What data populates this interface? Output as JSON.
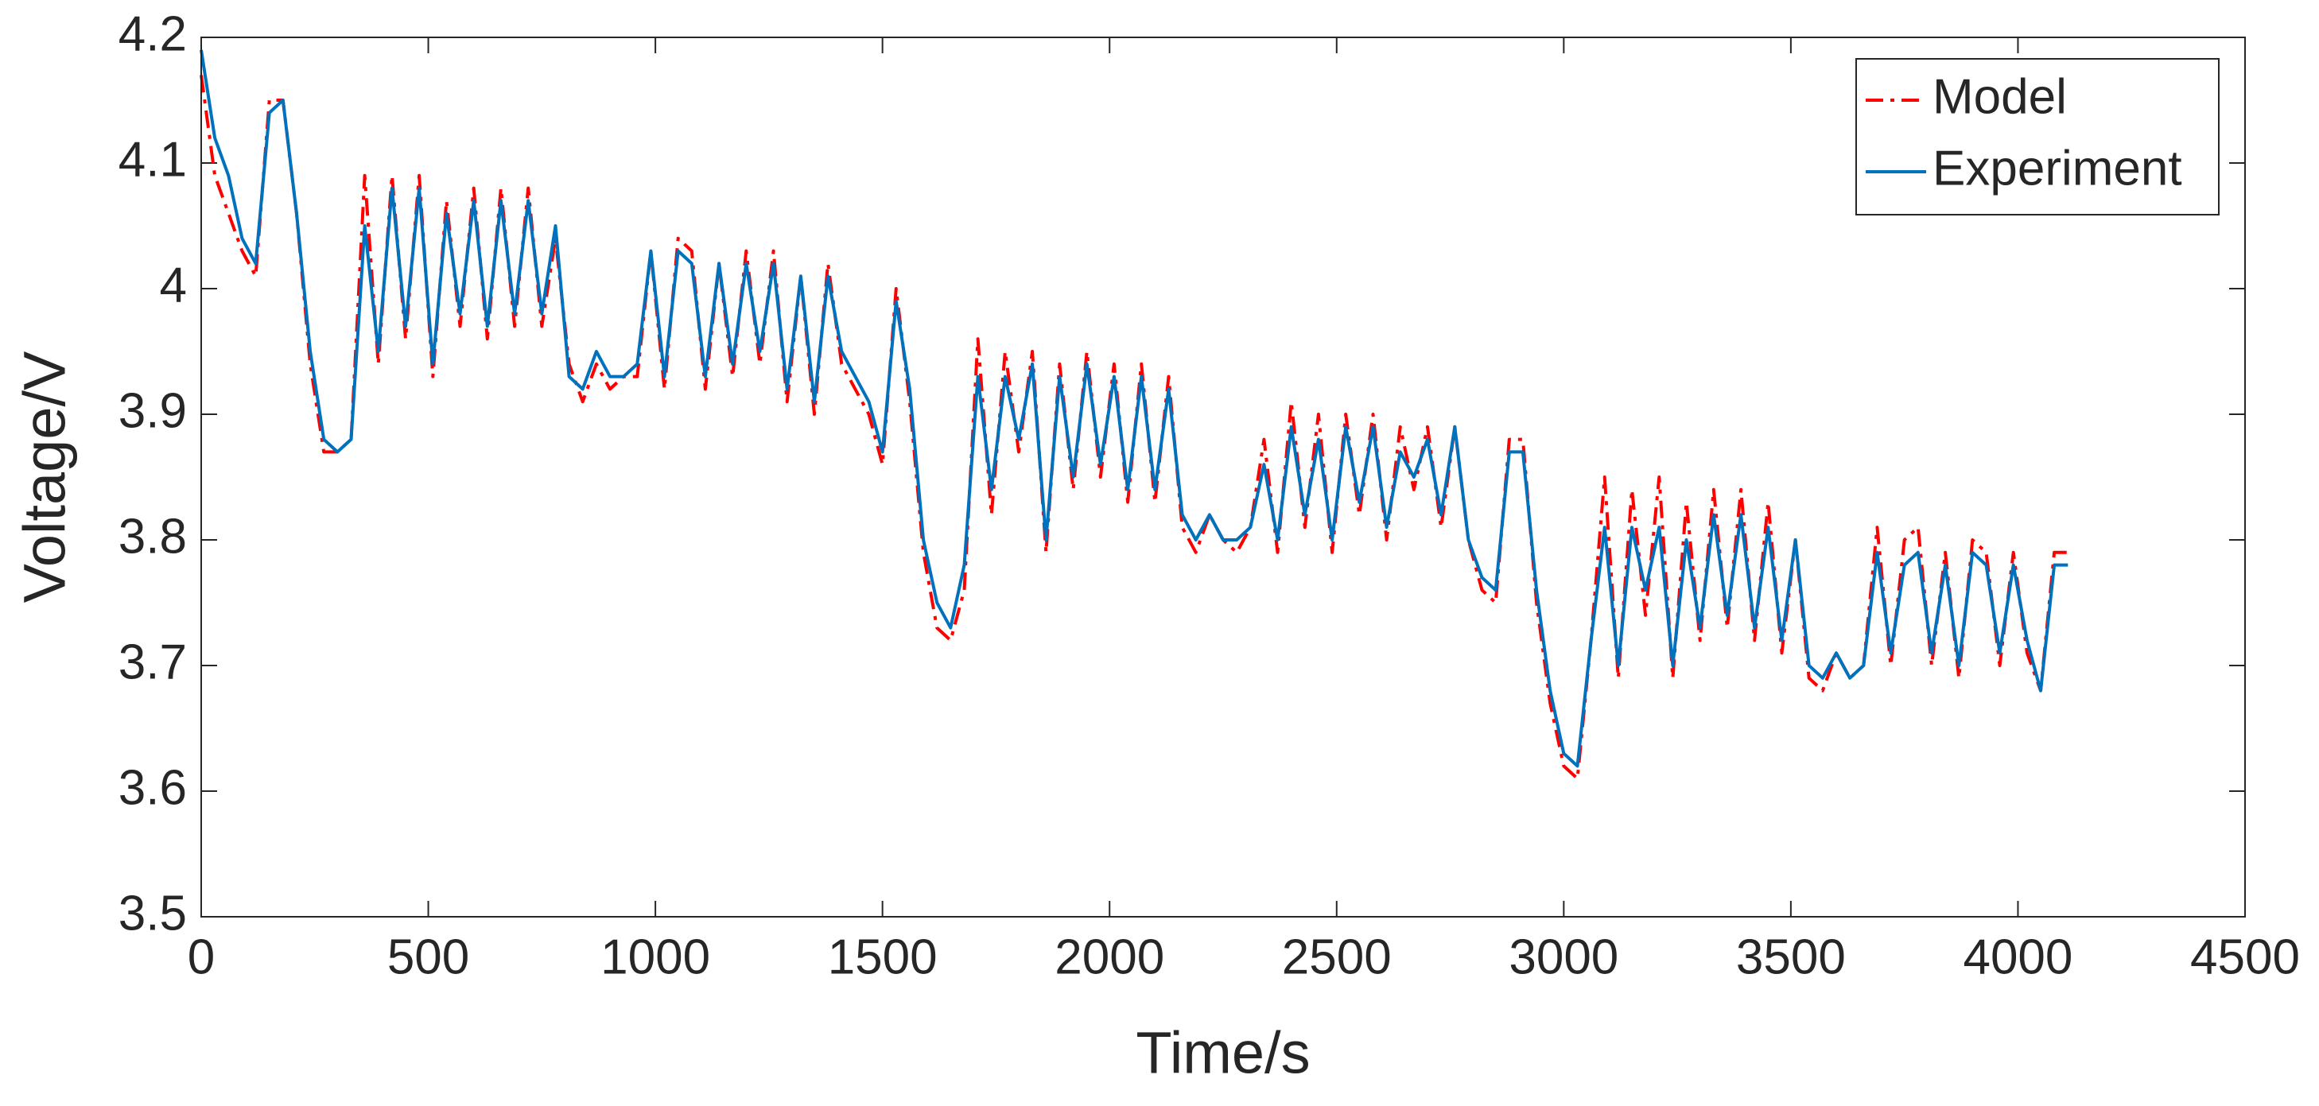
{
  "chart_data": {
    "type": "line",
    "xlabel": "Time/s",
    "ylabel": "Voltage/V",
    "xlim": [
      0,
      4500
    ],
    "xticks": [
      0,
      500,
      1000,
      1500,
      2000,
      2500,
      3000,
      3500,
      4000,
      4500
    ],
    "ylim": [
      3.5,
      4.2
    ],
    "yticks": [
      3.5,
      3.6,
      3.7,
      3.8,
      3.9,
      4,
      4.1,
      4.2
    ],
    "legend": "upper right",
    "grid": false,
    "x": [
      0,
      30,
      60,
      90,
      120,
      150,
      180,
      210,
      240,
      270,
      300,
      330,
      360,
      390,
      420,
      450,
      480,
      510,
      540,
      570,
      600,
      630,
      660,
      690,
      720,
      750,
      780,
      810,
      840,
      870,
      900,
      930,
      960,
      990,
      1020,
      1050,
      1080,
      1110,
      1140,
      1170,
      1200,
      1230,
      1260,
      1290,
      1320,
      1350,
      1380,
      1410,
      1440,
      1470,
      1500,
      1530,
      1560,
      1590,
      1620,
      1650,
      1680,
      1710,
      1740,
      1770,
      1800,
      1830,
      1860,
      1890,
      1920,
      1950,
      1980,
      2010,
      2040,
      2070,
      2100,
      2130,
      2160,
      2190,
      2220,
      2250,
      2280,
      2310,
      2340,
      2370,
      2400,
      2430,
      2460,
      2490,
      2520,
      2550,
      2580,
      2610,
      2640,
      2670,
      2700,
      2730,
      2760,
      2790,
      2820,
      2850,
      2880,
      2910,
      2940,
      2970,
      3000,
      3030,
      3060,
      3090,
      3120,
      3150,
      3180,
      3210,
      3240,
      3270,
      3300,
      3330,
      3360,
      3390,
      3420,
      3450,
      3480,
      3510,
      3540,
      3570,
      3600,
      3630,
      3660,
      3690,
      3720,
      3750,
      3780,
      3810,
      3840,
      3870,
      3900,
      3930,
      3960,
      3990,
      4020,
      4050,
      4080,
      4110
    ],
    "series": [
      {
        "name": "Model",
        "color": "#ff0000",
        "line_style": "dashdot",
        "values": [
          4.17,
          4.09,
          4.06,
          4.03,
          4.01,
          4.15,
          4.15,
          4.06,
          3.94,
          3.87,
          3.87,
          3.88,
          4.09,
          3.94,
          4.09,
          3.96,
          4.09,
          3.93,
          4.07,
          3.97,
          4.08,
          3.96,
          4.08,
          3.97,
          4.08,
          3.97,
          4.04,
          3.94,
          3.91,
          3.94,
          3.92,
          3.93,
          3.93,
          4.03,
          3.92,
          4.04,
          4.03,
          3.92,
          4.02,
          3.93,
          4.03,
          3.94,
          4.03,
          3.91,
          4.01,
          3.9,
          4.02,
          3.94,
          3.92,
          3.9,
          3.86,
          4.0,
          3.91,
          3.79,
          3.73,
          3.72,
          3.76,
          3.96,
          3.82,
          3.95,
          3.87,
          3.95,
          3.79,
          3.94,
          3.84,
          3.95,
          3.85,
          3.94,
          3.83,
          3.94,
          3.83,
          3.93,
          3.81,
          3.79,
          3.82,
          3.8,
          3.79,
          3.81,
          3.88,
          3.79,
          3.91,
          3.81,
          3.9,
          3.79,
          3.9,
          3.82,
          3.9,
          3.8,
          3.89,
          3.84,
          3.89,
          3.81,
          3.89,
          3.8,
          3.76,
          3.75,
          3.88,
          3.88,
          3.75,
          3.67,
          3.62,
          3.61,
          3.72,
          3.85,
          3.69,
          3.84,
          3.74,
          3.85,
          3.69,
          3.83,
          3.72,
          3.84,
          3.73,
          3.84,
          3.72,
          3.83,
          3.71,
          3.8,
          3.69,
          3.68,
          3.71,
          3.69,
          3.7,
          3.81,
          3.7,
          3.8,
          3.81,
          3.7,
          3.79,
          3.69,
          3.8,
          3.79,
          3.7,
          3.79,
          3.71,
          3.68,
          3.79,
          3.79
        ]
      },
      {
        "name": "Experiment",
        "color": "#0072bd",
        "line_style": "solid",
        "values": [
          4.19,
          4.12,
          4.09,
          4.04,
          4.02,
          4.14,
          4.15,
          4.06,
          3.95,
          3.88,
          3.87,
          3.88,
          4.05,
          3.95,
          4.08,
          3.97,
          4.08,
          3.94,
          4.06,
          3.98,
          4.07,
          3.97,
          4.07,
          3.98,
          4.07,
          3.98,
          4.05,
          3.93,
          3.92,
          3.95,
          3.93,
          3.93,
          3.94,
          4.03,
          3.93,
          4.03,
          4.02,
          3.93,
          4.02,
          3.94,
          4.02,
          3.95,
          4.02,
          3.92,
          4.01,
          3.91,
          4.01,
          3.95,
          3.93,
          3.91,
          3.87,
          3.99,
          3.92,
          3.8,
          3.75,
          3.73,
          3.78,
          3.93,
          3.84,
          3.93,
          3.88,
          3.94,
          3.8,
          3.93,
          3.85,
          3.94,
          3.86,
          3.93,
          3.84,
          3.93,
          3.84,
          3.92,
          3.82,
          3.8,
          3.82,
          3.8,
          3.8,
          3.81,
          3.86,
          3.8,
          3.89,
          3.82,
          3.88,
          3.8,
          3.89,
          3.83,
          3.89,
          3.81,
          3.87,
          3.85,
          3.88,
          3.82,
          3.89,
          3.8,
          3.77,
          3.76,
          3.87,
          3.87,
          3.76,
          3.68,
          3.63,
          3.62,
          3.72,
          3.81,
          3.7,
          3.81,
          3.76,
          3.81,
          3.7,
          3.8,
          3.73,
          3.82,
          3.74,
          3.82,
          3.73,
          3.81,
          3.72,
          3.8,
          3.7,
          3.69,
          3.71,
          3.69,
          3.7,
          3.79,
          3.71,
          3.78,
          3.79,
          3.71,
          3.78,
          3.7,
          3.79,
          3.78,
          3.71,
          3.78,
          3.72,
          3.68,
          3.78,
          3.78
        ]
      }
    ]
  }
}
